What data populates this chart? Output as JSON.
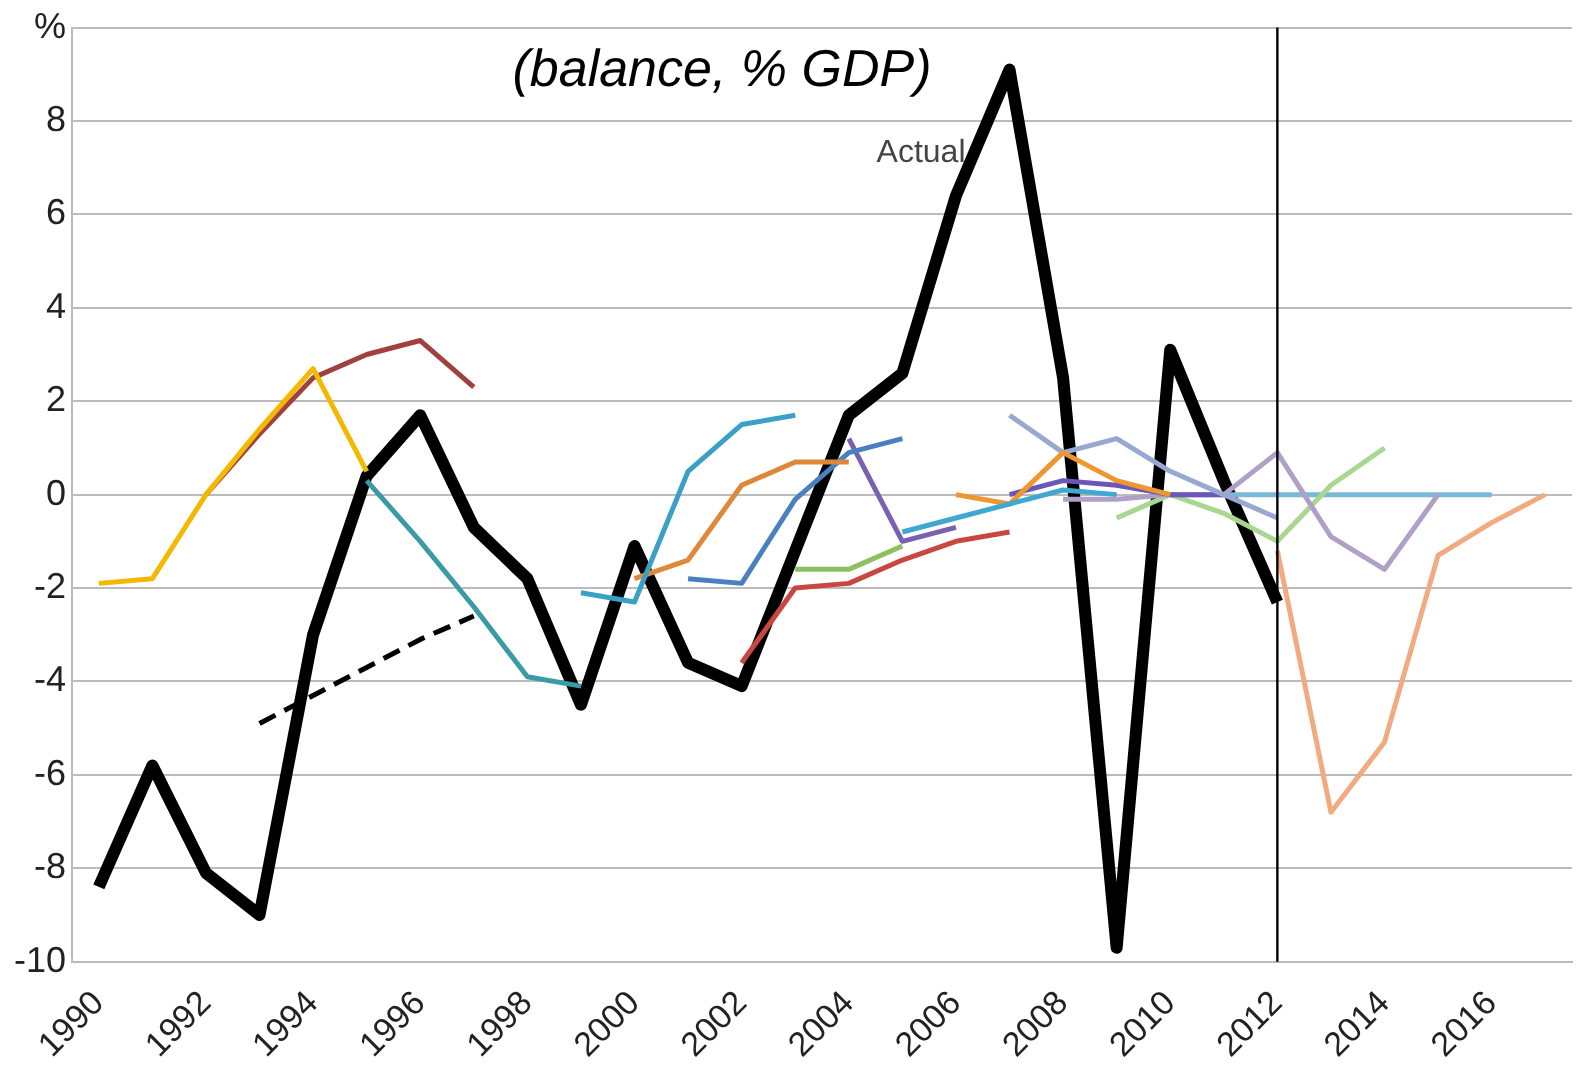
{
  "chart_data": {
    "type": "line",
    "title": "(balance, % GDP)",
    "xlim": [
      1989.5,
      2017.5
    ],
    "xticks": [
      1990,
      1992,
      1994,
      1996,
      1998,
      2000,
      2002,
      2004,
      2006,
      2008,
      2010,
      2012,
      2014,
      2016
    ],
    "ylim": [
      -10,
      10
    ],
    "yticks": [
      -10,
      -8,
      -6,
      -4,
      -2,
      0,
      2,
      4,
      6,
      8,
      {
        "value": 10,
        "label": "%"
      }
    ],
    "grid": "y",
    "legend": false,
    "marker": "none",
    "ref_lines": [
      {
        "axis": "x",
        "value": 2012,
        "color": "#000000"
      }
    ],
    "series": [
      {
        "color": "#f5b800",
        "x": [
          1990,
          1991,
          1992,
          1993,
          1994,
          1995
        ],
        "values": [
          -1.9,
          -1.8,
          0,
          1.4,
          2.7,
          0.5
        ]
      },
      {
        "color": "#a0403f",
        "x": [
          1992,
          1993,
          1994,
          1995,
          1996,
          1997
        ],
        "values": [
          0,
          1.3,
          2.5,
          3.0,
          3.3,
          2.3
        ]
      },
      {
        "color": "#3a9aa5",
        "x": [
          1995,
          1996,
          1997,
          1998,
          1999
        ],
        "values": [
          0.3,
          -1.0,
          -2.4,
          -3.9,
          -4.1
        ]
      },
      {
        "color": "#000000",
        "line_style": "dashed",
        "x": [
          1993,
          1994,
          1995,
          1996,
          1997
        ],
        "values": [
          -4.9,
          -4.3,
          -3.7,
          -3.1,
          -2.6
        ]
      },
      {
        "color": "#3aa0c8",
        "x": [
          1999,
          2000,
          2001,
          2002,
          2003
        ],
        "values": [
          -2.1,
          -2.3,
          0.5,
          1.5,
          1.7
        ]
      },
      {
        "color": "#e0883a",
        "x": [
          2000,
          2001,
          2002,
          2003,
          2004
        ],
        "values": [
          -1.8,
          -1.4,
          0.2,
          0.7,
          0.7
        ]
      },
      {
        "color": "#4a7fc0",
        "x": [
          2001,
          2002,
          2003,
          2004,
          2005
        ],
        "values": [
          -1.8,
          -1.9,
          -0.1,
          0.9,
          1.2
        ]
      },
      {
        "color": "#c8483f",
        "x": [
          2002,
          2003,
          2004,
          2005,
          2006,
          2007
        ],
        "values": [
          -3.6,
          -2.0,
          -1.9,
          -1.4,
          -1.0,
          -0.8
        ]
      },
      {
        "color": "#8cc060",
        "x": [
          2003,
          2004,
          2005
        ],
        "values": [
          -1.6,
          -1.6,
          -1.1
        ]
      },
      {
        "color": "#7a60b0",
        "x": [
          2004,
          2005,
          2006
        ],
        "values": [
          1.2,
          -1.0,
          -0.7
        ]
      },
      {
        "color": "#40a8d0",
        "x": [
          2005,
          2006,
          2007,
          2008,
          2009
        ],
        "values": [
          -0.8,
          -0.5,
          -0.2,
          0.1,
          0
        ]
      },
      {
        "color": "#f0962e",
        "x": [
          2006,
          2007,
          2008,
          2009,
          2010
        ],
        "values": [
          0,
          -0.2,
          0.9,
          0.3,
          0
        ]
      },
      {
        "color": "#98a8d0",
        "x": [
          2007,
          2008,
          2009,
          2010,
          2011,
          2012
        ],
        "values": [
          1.7,
          0.9,
          1.2,
          0.5,
          0,
          -0.5
        ]
      },
      {
        "color": "#6a58b8",
        "x": [
          2007,
          2008,
          2009,
          2010,
          2011
        ],
        "values": [
          0,
          0.3,
          0.2,
          0,
          0
        ]
      },
      {
        "color": "#b0a0c8",
        "x": [
          2008,
          2009,
          2010,
          2011,
          2012,
          2013,
          2014,
          2015
        ],
        "values": [
          -0.1,
          -0.1,
          0,
          0,
          0.9,
          -0.9,
          -1.6,
          0
        ]
      },
      {
        "color": "#a8d890",
        "x": [
          2009,
          2010,
          2011,
          2012,
          2013,
          2014
        ],
        "values": [
          -0.5,
          0,
          -0.4,
          -1.0,
          0.2,
          1.0
        ]
      },
      {
        "color": "#7ab8d8",
        "x": [
          2011,
          2012,
          2013,
          2014,
          2015,
          2016
        ],
        "values": [
          0,
          0,
          0,
          0,
          0,
          0
        ]
      },
      {
        "color": "#f2aa80",
        "x": [
          2012,
          2013,
          2014,
          2015,
          2016,
          2017
        ],
        "values": [
          -1.2,
          -6.8,
          -5.3,
          -1.3,
          -0.6,
          0
        ]
      },
      {
        "name": "Actual",
        "color": "#000000",
        "x": [
          1990,
          1991,
          1992,
          1993,
          1994,
          1995,
          1996,
          1997,
          1998,
          1999,
          2000,
          2001,
          2002,
          2003,
          2004,
          2005,
          2006,
          2007,
          2008,
          2009,
          2010,
          2011,
          2012
        ],
        "values": [
          -8.4,
          -5.8,
          -8.1,
          -9.0,
          -3.0,
          0.4,
          1.7,
          -0.7,
          -1.8,
          -4.5,
          -1.1,
          -3.6,
          -4.1,
          -1.2,
          1.7,
          2.6,
          6.4,
          9.1,
          2.5,
          -9.7,
          3.1,
          0.3,
          -2.3
        ]
      }
    ]
  }
}
